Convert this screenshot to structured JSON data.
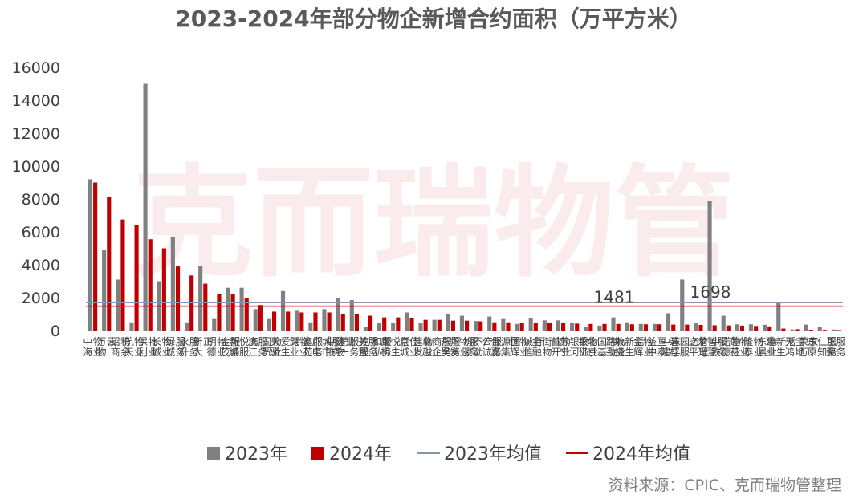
{
  "chart_data": {
    "type": "bar",
    "title": "2023-2024年部分物企新增合约面积（万平方米）",
    "watermark": "克而瑞物管",
    "source": "资料来源：CPIC、克而瑞物管整理",
    "ylim": [
      0,
      16000
    ],
    "yticks": [
      0,
      2000,
      4000,
      6000,
      8000,
      10000,
      12000,
      14000,
      16000
    ],
    "grid": false,
    "legend_position": "bottom",
    "colors": {
      "2023": "#808080",
      "2024": "#c00000",
      "avg2023": "#8497b0",
      "avg2024": "#c00000"
    },
    "categories": [
      "中海物业",
      "万物云",
      "招商积余",
      "航天物业",
      "保利物业",
      "长城物业",
      "绿城服务",
      "永升服务",
      "新大正",
      "明德物业",
      "金茂服务",
      "新城悦服务",
      "滨江服务",
      "国贸物业",
      "天骄爱生活",
      "深业物业",
      "鑫苑服务",
      "广电城市服务",
      "中铁建物业",
      "第一服务控股",
      "美置服务",
      "和泓服务",
      "康桥悦生活",
      "京城佳业",
      "建发物业",
      "卓越商企服务",
      "东吴服务",
      "华发物业服务",
      "均豪不动产",
      "公诚服务",
      "合嘉源集团",
      "恒辉物业",
      "诚信行",
      "金融街物业",
      "首开物业",
      "苏宁银河物业",
      "银亿物业",
      "北京国基伟业",
      "路劲物业",
      "敏捷新生活",
      "金辉物业",
      "益中亘泰",
      "中建东孚",
      "碧桂园服务",
      "之平管理",
      "龙光智慧服务",
      "中铁诺德物业",
      "莲花物业",
      "隆泰物业",
      "东晨物业",
      "建业新生活",
      "天鸿宝地",
      "荣万家",
      "东原仁知服务",
      "正荣服务"
    ],
    "series": [
      {
        "name": "2023年",
        "values": [
          9200,
          4900,
          3100,
          500,
          15000,
          3000,
          5700,
          500,
          3900,
          700,
          2600,
          2600,
          1300,
          700,
          2400,
          1200,
          500,
          1300,
          1950,
          1850,
          220,
          450,
          450,
          1100,
          450,
          650,
          1000,
          900,
          580,
          850,
          700,
          400,
          780,
          620,
          620,
          480,
          200,
          300,
          800,
          500,
          400,
          400,
          1050,
          3100,
          480,
          7900,
          900,
          380,
          380,
          350,
          1700,
          60,
          360,
          200,
          60
        ]
      },
      {
        "name": "2024年",
        "values": [
          9000,
          8100,
          6750,
          6400,
          5550,
          5000,
          3900,
          3350,
          2850,
          2200,
          2200,
          2000,
          1550,
          1150,
          1150,
          1100,
          1100,
          1100,
          1000,
          1000,
          900,
          800,
          800,
          750,
          650,
          650,
          600,
          600,
          560,
          500,
          500,
          470,
          470,
          440,
          440,
          420,
          400,
          400,
          400,
          380,
          380,
          380,
          360,
          360,
          340,
          320,
          310,
          300,
          280,
          250,
          120,
          80,
          50,
          40,
          30
        ]
      }
    ],
    "reference_lines": [
      {
        "name": "2023年均值",
        "value": 1698,
        "label": "1698"
      },
      {
        "name": "2024年均值",
        "value": 1481,
        "label": "1481"
      }
    ]
  }
}
